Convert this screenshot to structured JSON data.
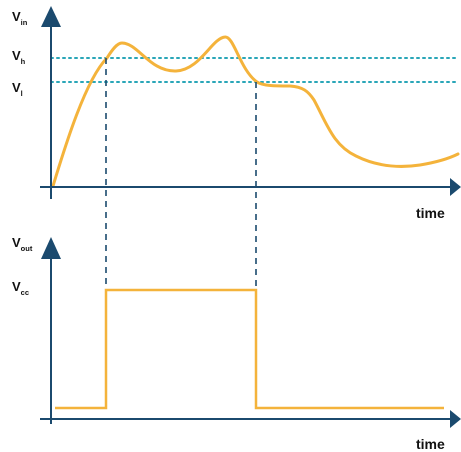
{
  "colors": {
    "axis": "#1b4a6e",
    "signal": "#f4b33b",
    "threshold": "#2aa6b8",
    "guide": "#1b4a6e",
    "text": "#111111"
  },
  "top_plot": {
    "y_label_main": "V",
    "y_label_sub": "in",
    "vh_main": "V",
    "vh_sub": "h",
    "vl_main": "V",
    "vl_sub": "l",
    "x_label": "time"
  },
  "bottom_plot": {
    "y_label_main": "V",
    "y_label_sub": "out",
    "vcc_main": "V",
    "vcc_sub": "cc",
    "x_label": "time"
  }
}
